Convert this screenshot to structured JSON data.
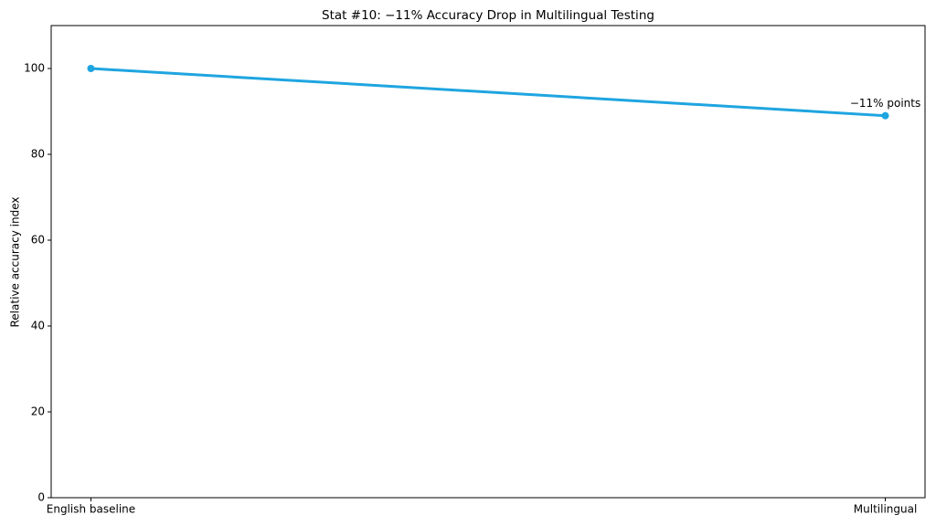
{
  "chart_data": {
    "type": "line",
    "title": "Stat #10: −11% Accuracy Drop in Multilingual Testing",
    "ylabel": "Relative accuracy index",
    "categories": [
      "English baseline",
      "Multilingual"
    ],
    "values": [
      100,
      89
    ],
    "color": "#1fa5e0",
    "annotation": "−11% points",
    "ylim": [
      0,
      110
    ],
    "yticks": [
      0,
      20,
      40,
      60,
      80,
      100
    ],
    "grid": false
  }
}
